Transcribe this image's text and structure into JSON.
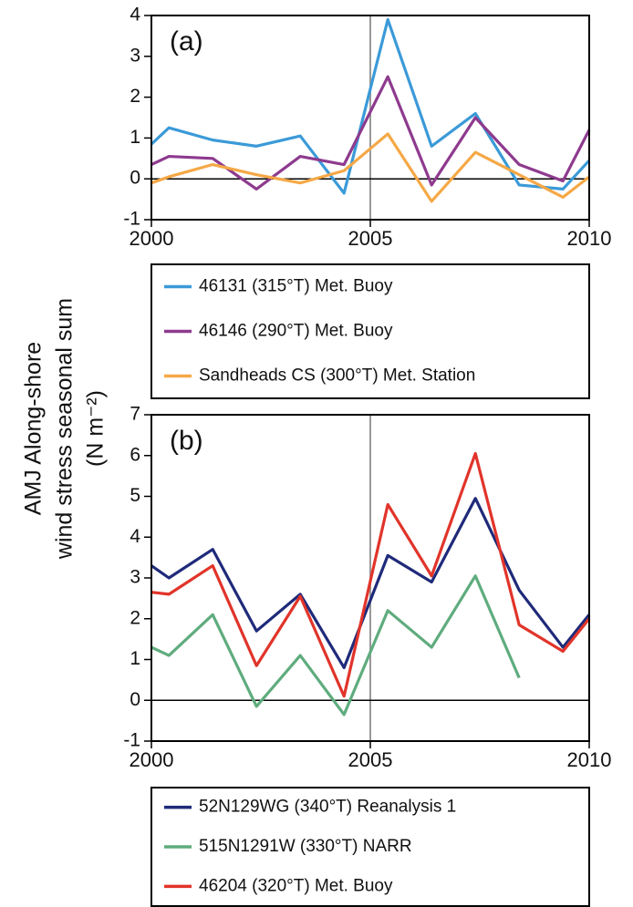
{
  "ylabel": [
    "AMJ Along-shore",
    "wind stress seasonal sum",
    "(N m⁻²)"
  ],
  "chart_data": [
    {
      "type": "line",
      "panel_label": "(a)",
      "x": [
        2000,
        2000.4,
        2001.4,
        2002.4,
        2003.4,
        2004.4,
        2005.4,
        2006.4,
        2007.4,
        2008.4,
        2009.4,
        2010
      ],
      "xlim": [
        2000,
        2010
      ],
      "xticks": [
        2000,
        2005,
        2010
      ],
      "ylim": [
        -1,
        4
      ],
      "yticks": [
        -1,
        0,
        1,
        2,
        3,
        4
      ],
      "vline": 2005,
      "hline": 0,
      "series": [
        {
          "name": "46131 (315°T) Met. Buoy",
          "color": "#3b9ad8",
          "values": [
            0.85,
            1.25,
            0.95,
            0.8,
            1.05,
            -0.35,
            3.9,
            0.8,
            1.6,
            -0.15,
            -0.25,
            0.45
          ]
        },
        {
          "name": "46146 (290°T) Met. Buoy",
          "color": "#8e3a8e",
          "values": [
            0.35,
            0.55,
            0.5,
            -0.25,
            0.55,
            0.35,
            2.5,
            -0.15,
            1.5,
            0.35,
            -0.05,
            1.2
          ]
        },
        {
          "name": "Sandheads CS (300°T) Met. Station",
          "color": "#f5a846",
          "values": [
            -0.1,
            0.05,
            0.35,
            0.1,
            -0.1,
            0.2,
            1.1,
            -0.55,
            0.65,
            0.1,
            -0.45,
            0.05
          ]
        }
      ]
    },
    {
      "type": "line",
      "panel_label": "(b)",
      "x": [
        2000,
        2000.4,
        2001.4,
        2002.4,
        2003.4,
        2004.4,
        2005.4,
        2006.4,
        2007.4,
        2008.4,
        2009.4,
        2010
      ],
      "xlim": [
        2000,
        2010
      ],
      "xticks": [
        2000,
        2005,
        2010
      ],
      "ylim": [
        -1,
        7
      ],
      "yticks": [
        -1,
        0,
        1,
        2,
        3,
        4,
        5,
        6,
        7
      ],
      "vline": 2005,
      "hline": 0,
      "series": [
        {
          "name": "52N129WG (340°T) Reanalysis 1",
          "color": "#1f2a7a",
          "values": [
            3.3,
            3.0,
            3.7,
            1.7,
            2.6,
            0.8,
            3.55,
            2.9,
            4.95,
            2.7,
            1.3,
            2.1
          ]
        },
        {
          "name": "515N1291W (330°T) NARR",
          "color": "#5fac7e",
          "values": [
            1.3,
            1.1,
            2.1,
            -0.15,
            1.1,
            -0.35,
            2.2,
            1.3,
            3.05,
            0.55,
            null,
            null
          ]
        },
        {
          "name": "46204 (320°T) Met. Buoy",
          "color": "#e1342a",
          "values": [
            2.65,
            2.6,
            3.3,
            0.85,
            2.55,
            0.1,
            4.8,
            3.05,
            6.05,
            1.85,
            1.2,
            2.0
          ]
        }
      ]
    }
  ]
}
